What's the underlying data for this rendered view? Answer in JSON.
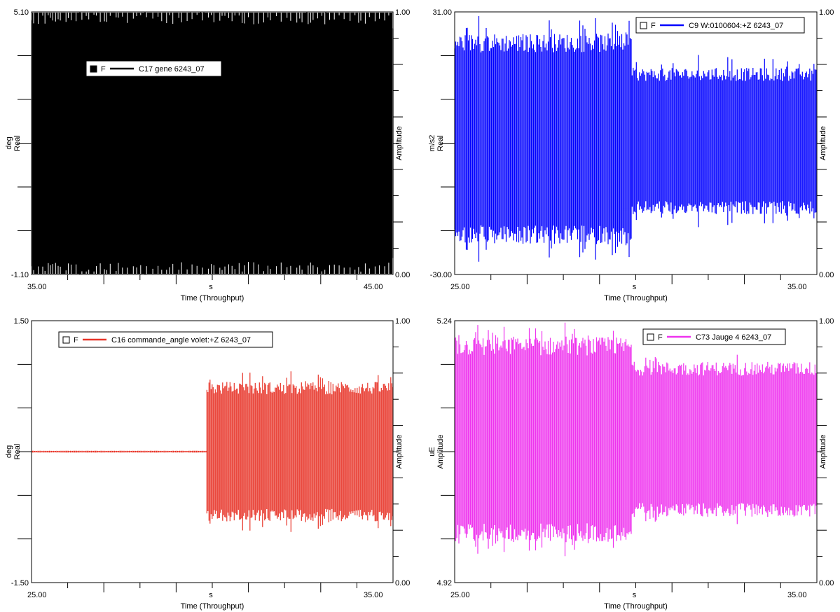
{
  "chart_data": [
    {
      "type": "line",
      "id": "top-left",
      "legend": {
        "marker": "F",
        "label": "C17 gene  6243_07",
        "filled_box": true
      },
      "color": "#000000",
      "ylabel": "deg",
      "ylabel2": "Real",
      "y2label": "Amplitude",
      "xlabel_unit": "s",
      "xlabel": "Time (Throughput)",
      "xlim": [
        35.0,
        45.0
      ],
      "ylim": [
        -1.1,
        5.1
      ],
      "x_ticks": [
        "35.00",
        "45.00"
      ],
      "y_ticks": [
        "5.10",
        "-1.10"
      ],
      "y2_ticks": [
        "1.00",
        "0.00"
      ],
      "y2lim": [
        0,
        1
      ],
      "signal": {
        "segments": [
          {
            "x_from": 35.0,
            "x_to": 45.0,
            "center": 2.0,
            "amplitude": 3.1,
            "spike": 0.0
          }
        ],
        "saturated": true
      }
    },
    {
      "type": "line",
      "id": "top-right",
      "legend": {
        "marker": "F",
        "label": "C9 W:0100604:+Z  6243_07",
        "filled_box": false
      },
      "color": "#0000ff",
      "ylabel": "m/s2",
      "ylabel2": "Real",
      "y2label": "Amplitude",
      "xlabel_unit": "s",
      "xlabel": "Time (Throughput)",
      "xlim": [
        25.0,
        35.0
      ],
      "ylim": [
        -30.0,
        31.0
      ],
      "x_ticks": [
        "25.00",
        "35.00"
      ],
      "y_ticks": [
        "31.00",
        "-30.00"
      ],
      "y2_ticks": [
        "1.00",
        "0.00"
      ],
      "y2lim": [
        0,
        1
      ],
      "signal": {
        "segments": [
          {
            "x_from": 25.0,
            "x_to": 29.9,
            "center": 1.5,
            "amplitude": 24.5,
            "spike": 5.0
          },
          {
            "x_from": 29.9,
            "x_to": 35.0,
            "center": 1.0,
            "amplitude": 17.0,
            "spike": 4.0
          }
        ]
      }
    },
    {
      "type": "line",
      "id": "bottom-left",
      "legend": {
        "marker": "F",
        "label": "C16 commande_angle volet:+Z  6243_07",
        "filled_box": false
      },
      "color": "#e83428",
      "ylabel": "deg",
      "ylabel2": "Real",
      "y2label": "Amplitude",
      "xlabel_unit": "s",
      "xlabel": "Time (Throughput)",
      "xlim": [
        25.0,
        35.0
      ],
      "ylim": [
        -1.5,
        1.5
      ],
      "x_ticks": [
        "25.00",
        "35.00"
      ],
      "y_ticks": [
        "1.50",
        "-1.50"
      ],
      "y2_ticks": [
        "1.00",
        "0.00"
      ],
      "y2lim": [
        0,
        1
      ],
      "signal": {
        "segments": [
          {
            "x_from": 25.0,
            "x_to": 29.85,
            "center": 0.0,
            "amplitude": 0.01,
            "spike": 0.0
          },
          {
            "x_from": 29.85,
            "x_to": 35.0,
            "center": 0.0,
            "amplitude": 0.8,
            "spike": 0.15
          }
        ]
      }
    },
    {
      "type": "line",
      "id": "bottom-right",
      "legend": {
        "marker": "F",
        "label": "C73 Jauge 4  6243_07",
        "filled_box": false
      },
      "color": "#ee33ee",
      "ylabel": "uE",
      "ylabel2": "Amplitude",
      "y2label": "Amplitude",
      "xlabel_unit": "s",
      "xlabel": "Time (Throughput)",
      "xlim": [
        25.0,
        35.0
      ],
      "ylim": [
        4.92,
        5.24
      ],
      "x_ticks": [
        "25.00",
        "35.00"
      ],
      "y_ticks": [
        "5.24",
        "4.92"
      ],
      "y2_ticks": [
        "1.00",
        "0.00"
      ],
      "y2lim": [
        0,
        1
      ],
      "signal": {
        "segments": [
          {
            "x_from": 25.0,
            "x_to": 29.9,
            "center": 5.095,
            "amplitude": 0.125,
            "spike": 0.02
          },
          {
            "x_from": 29.9,
            "x_to": 35.0,
            "center": 5.095,
            "amplitude": 0.095,
            "spike": 0.015
          }
        ]
      }
    }
  ]
}
